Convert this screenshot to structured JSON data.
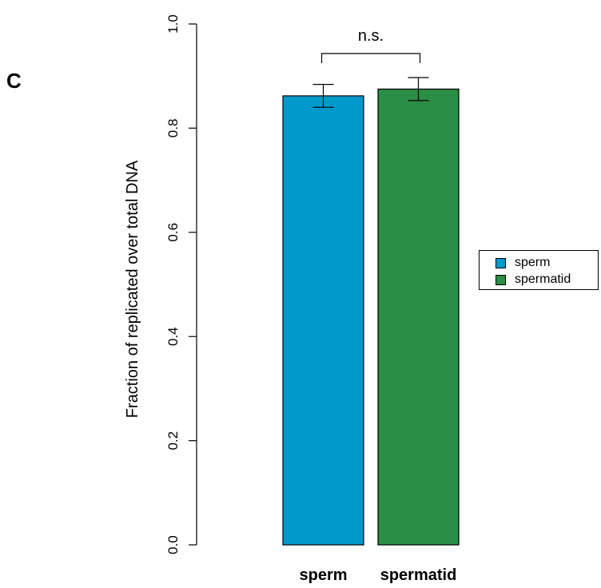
{
  "panel_label": "C",
  "chart_data": {
    "type": "bar",
    "categories": [
      "sperm",
      "spermatid"
    ],
    "values": [
      0.862,
      0.875
    ],
    "errors": [
      0.022,
      0.022
    ],
    "colors": [
      "#0099CC",
      "#2A8F45"
    ],
    "ylabel": "Fraction of replicated over total DNA",
    "xlabel": "",
    "ylim": [
      0,
      1.0
    ],
    "yticks": [
      "0.0",
      "0.2",
      "0.4",
      "0.6",
      "0.8",
      "1.0"
    ],
    "annotation": "n.s.",
    "legend": {
      "position": "right",
      "entries": [
        "sperm",
        "spermatid"
      ]
    }
  }
}
